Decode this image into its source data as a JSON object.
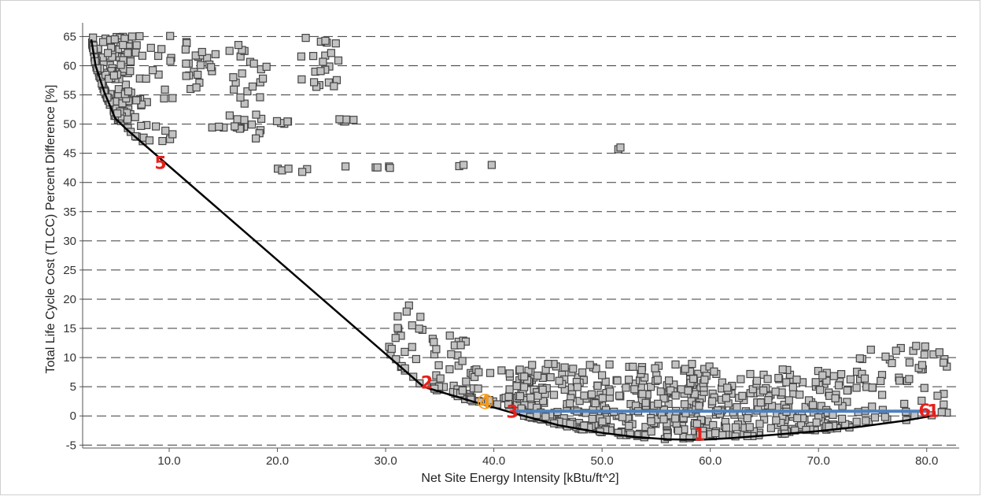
{
  "chart_data": {
    "type": "scatter",
    "xlabel": "Net Site Energy Intensity [kBtu/ft^2]",
    "ylabel": "Total Life Cycle Cost (TLCC) Percent Difference [%]",
    "xlim": [
      2,
      83
    ],
    "ylim": [
      -5.5,
      66
    ],
    "x_ticks": [
      "10.0",
      "20.0",
      "30.0",
      "40.0",
      "50.0",
      "60.0",
      "70.0",
      "80.0"
    ],
    "x_tick_values": [
      10,
      20,
      30,
      40,
      50,
      60,
      70,
      80
    ],
    "y_ticks": [
      "-5",
      "0",
      "5",
      "10",
      "15",
      "20",
      "25",
      "30",
      "35",
      "40",
      "45",
      "50",
      "55",
      "60",
      "65"
    ],
    "y_tick_values": [
      -5,
      0,
      5,
      10,
      15,
      20,
      25,
      30,
      35,
      40,
      45,
      50,
      55,
      60,
      65
    ],
    "grid": "horizontal dashed",
    "point_clusters": [
      {
        "x_range": [
          2.8,
          6.5
        ],
        "y_range": [
          49,
          65
        ],
        "n": 160
      },
      {
        "x_range": [
          5.5,
          10.5
        ],
        "y_range": [
          47,
          66
        ],
        "n": 45
      },
      {
        "x_range": [
          11.5,
          14.5
        ],
        "y_range": [
          56,
          64.5
        ],
        "n": 22
      },
      {
        "x_range": [
          13.5,
          17
        ],
        "y_range": [
          49.3,
          49.8
        ],
        "n": 8
      },
      {
        "x_range": [
          15.5,
          19
        ],
        "y_range": [
          47.5,
          65
        ],
        "n": 32
      },
      {
        "x_range": [
          19,
          21
        ],
        "y_range": [
          50,
          50.5
        ],
        "n": 5
      },
      {
        "x_range": [
          20,
          23.5
        ],
        "y_range": [
          41.6,
          42.4
        ],
        "n": 5
      },
      {
        "x_range": [
          22,
          25.8
        ],
        "y_range": [
          56,
          65
        ],
        "n": 22
      },
      {
        "x_range": [
          25.5,
          27.5
        ],
        "y_range": [
          50.3,
          50.9
        ],
        "n": 5
      },
      {
        "x_range": [
          25,
          30.5
        ],
        "y_range": [
          42.4,
          42.8
        ],
        "n": 4
      },
      {
        "x_range": [
          30.2,
          33.5
        ],
        "y_range": [
          5,
          20
        ],
        "n": 24
      },
      {
        "x_range": [
          34.2,
          38.5
        ],
        "y_range": [
          2.5,
          14.5
        ],
        "n": 42
      },
      {
        "x_range": [
          36.5,
          44
        ],
        "y_range": [
          1,
          8
        ],
        "n": 45
      },
      {
        "x_range": [
          42,
          60
        ],
        "y_range": [
          -4,
          9
        ],
        "n": 360
      },
      {
        "x_range": [
          60,
          73
        ],
        "y_range": [
          -4,
          8
        ],
        "n": 190
      },
      {
        "x_range": [
          73,
          82
        ],
        "y_range": [
          -1,
          12
        ],
        "n": 60
      }
    ],
    "outliers": [
      [
        36.8,
        42.8
      ],
      [
        37.2,
        43.0
      ],
      [
        39.8,
        43.0
      ],
      [
        51.5,
        45.7
      ],
      [
        51.7,
        46.0
      ],
      [
        30.4,
        42.5
      ]
    ],
    "pareto_front": [
      [
        2.8,
        64.5
      ],
      [
        3.2,
        60
      ],
      [
        4,
        55.5
      ],
      [
        5,
        51
      ],
      [
        6,
        49.2
      ],
      [
        33.5,
        5.0
      ],
      [
        38,
        2.5
      ],
      [
        42,
        0.4
      ],
      [
        46,
        -1.6
      ],
      [
        50,
        -2.9
      ],
      [
        53,
        -3.6
      ],
      [
        56,
        -4.0
      ],
      [
        59,
        -4.1
      ],
      [
        62,
        -3.8
      ],
      [
        66,
        -3.2
      ],
      [
        70,
        -2.6
      ],
      [
        74,
        -1.8
      ],
      [
        78,
        -0.8
      ],
      [
        80.5,
        0
      ]
    ],
    "reference_line": {
      "x": [
        42,
        80.3
      ],
      "y": 0.8,
      "color": "#4f81bd"
    },
    "markers": [
      {
        "label": "5",
        "x": 9.2,
        "y": 42.3,
        "color": "#e8201a"
      },
      {
        "label": "2",
        "x": 33.8,
        "y": 4.7,
        "color": "#e8201a"
      },
      {
        "label": "4",
        "x": 39.2,
        "y": 1.4,
        "color": "#f39a1e"
      },
      {
        "label": "3",
        "x": 41.7,
        "y": -0.3,
        "color": "#e8201a"
      },
      {
        "label": "1",
        "x": 59.0,
        "y": -4.2,
        "color": "#e8201a"
      },
      {
        "label": "6",
        "x": 79.8,
        "y": -0.1,
        "color": "#e8201a"
      },
      {
        "label": "1",
        "x": 80.6,
        "y": -0.2,
        "color": "#e8201a"
      }
    ],
    "colors": {
      "point_fill": "#c2c2c2",
      "point_stroke": "#444444",
      "front": "#000000",
      "label_red": "#e8201a",
      "label_orange": "#f39a1e",
      "reference_line": "#4f81bd"
    }
  }
}
